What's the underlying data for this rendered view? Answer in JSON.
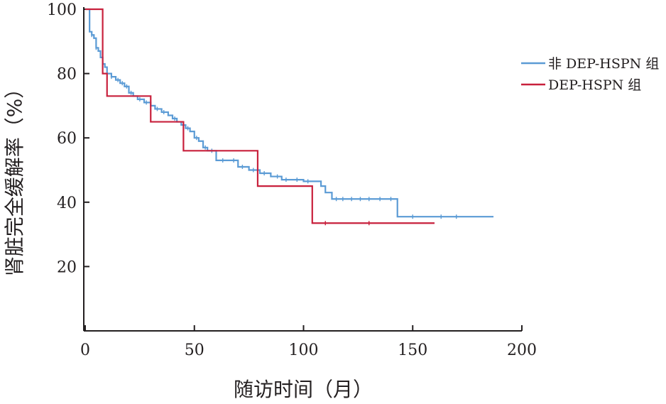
{
  "chart_data": {
    "type": "line",
    "step": true,
    "title": "",
    "xlabel": "随访时间（月）",
    "ylabel": "肾脏完全缓解率（%）",
    "xlim": [
      0,
      200
    ],
    "ylim": [
      0,
      100
    ],
    "xticks": [
      0,
      50,
      100,
      150,
      200
    ],
    "yticks": [
      20,
      40,
      60,
      80,
      100
    ],
    "x_tick_labels": [
      "0",
      "50",
      "100",
      "150",
      "200"
    ],
    "y_tick_labels": [
      "20",
      "40",
      "60",
      "80",
      "100"
    ],
    "grid": false,
    "legend_position": "right",
    "series": [
      {
        "name": "非 DEP-HSPN 组",
        "color": "#5b9bd5",
        "x": [
          0,
          2,
          3,
          4,
          5,
          6,
          7,
          8,
          9,
          10,
          12,
          14,
          16,
          18,
          20,
          22,
          24,
          27,
          30,
          32,
          35,
          38,
          40,
          42,
          44,
          46,
          48,
          50,
          52,
          54,
          56,
          60,
          65,
          70,
          75,
          80,
          85,
          90,
          95,
          100,
          105,
          108,
          110,
          113,
          130,
          143,
          160,
          187
        ],
        "y": [
          100,
          93,
          92,
          91,
          88,
          87,
          85,
          83,
          82,
          80,
          79,
          78,
          77,
          76,
          74,
          73,
          72,
          71,
          70,
          69,
          68,
          67,
          66,
          65,
          64,
          63,
          62,
          60,
          59,
          57,
          56,
          53,
          53,
          51,
          50,
          49,
          48,
          47,
          47,
          46.5,
          46.5,
          45,
          43,
          41,
          41,
          35.5,
          35.5,
          35.5
        ],
        "censor_x": [
          3,
          5,
          8,
          12,
          15,
          17,
          19,
          21,
          25,
          28,
          33,
          36,
          41,
          47,
          51,
          55,
          58,
          63,
          68,
          72,
          77,
          82,
          88,
          92,
          97,
          102,
          115,
          118,
          122,
          126,
          130,
          135,
          140,
          150,
          163,
          170
        ]
      },
      {
        "name": "DEP-HSPN 组",
        "color": "#c8203c",
        "x": [
          0,
          6,
          8,
          10,
          30,
          45,
          79,
          104,
          160
        ],
        "y": [
          100,
          100,
          80,
          73,
          65,
          56,
          45,
          33.5,
          33.5
        ],
        "censor_x": [
          110,
          130
        ]
      }
    ]
  }
}
